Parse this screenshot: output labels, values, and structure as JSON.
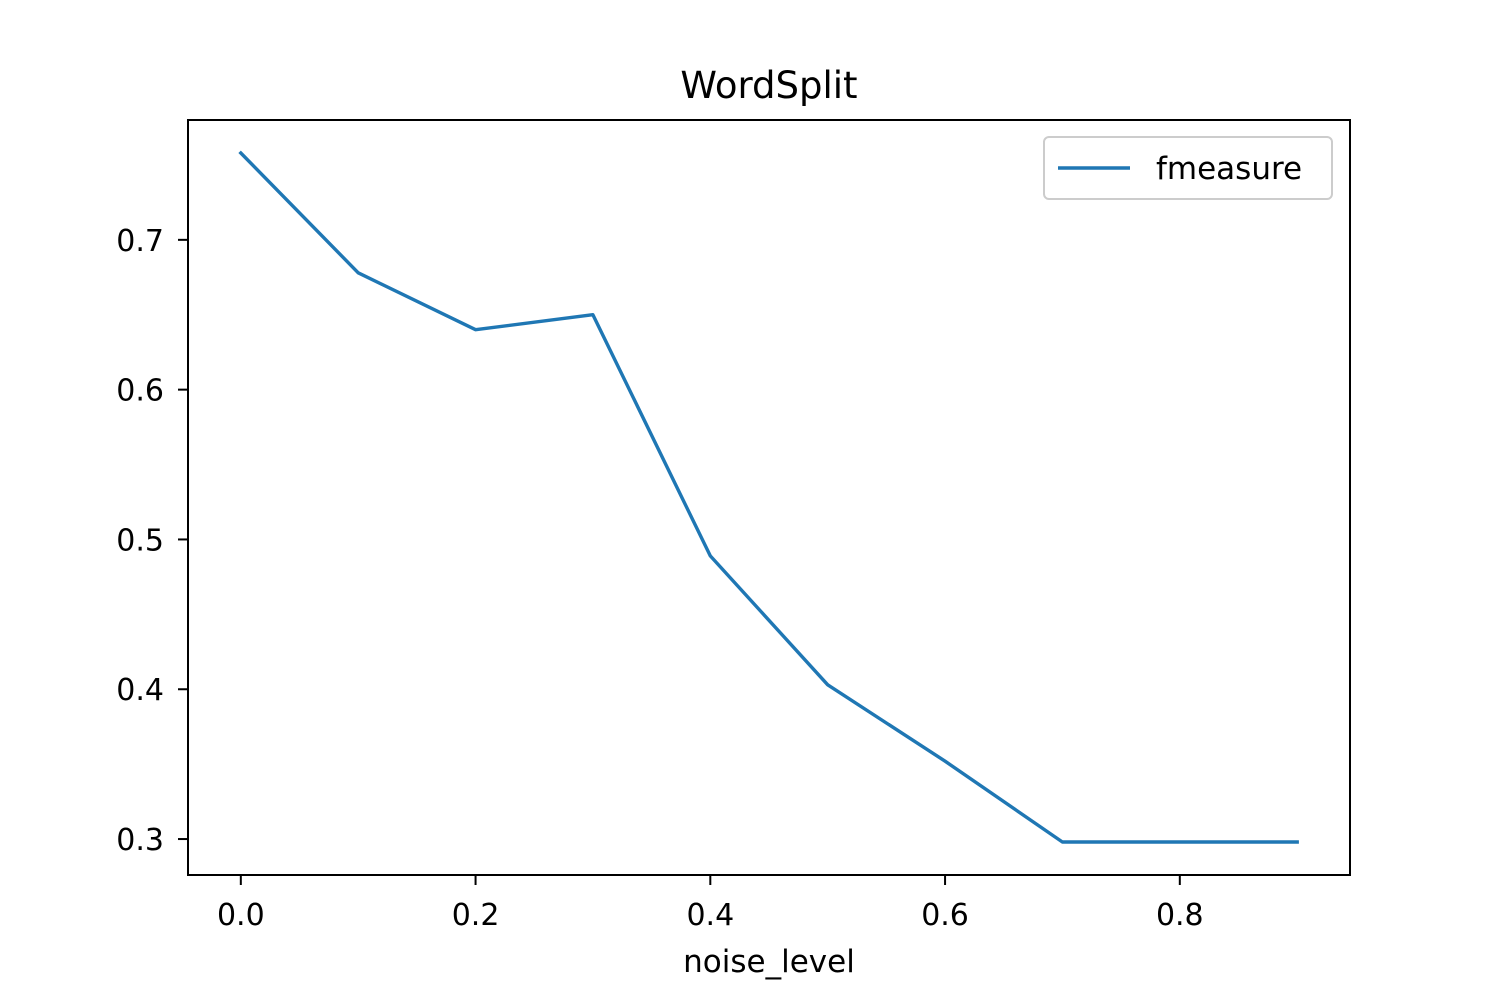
{
  "chart_data": {
    "type": "line",
    "title": "WordSplit",
    "xlabel": "noise_level",
    "ylabel": "",
    "x": [
      0.0,
      0.1,
      0.2,
      0.3,
      0.4,
      0.5,
      0.6,
      0.7,
      0.8,
      0.9
    ],
    "series": [
      {
        "name": "fmeasure",
        "values": [
          0.758,
          0.678,
          0.64,
          0.65,
          0.489,
          0.403,
          0.352,
          0.298,
          0.298,
          0.298
        ],
        "color": "#1f77b4"
      }
    ],
    "xlim": [
      -0.045,
      0.945
    ],
    "ylim": [
      0.276,
      0.78
    ],
    "xticks": [
      0.0,
      0.2,
      0.4,
      0.6,
      0.8
    ],
    "xtick_labels": [
      "0.0",
      "0.2",
      "0.4",
      "0.6",
      "0.8"
    ],
    "yticks": [
      0.3,
      0.4,
      0.5,
      0.6,
      0.7
    ],
    "ytick_labels": [
      "0.3",
      "0.4",
      "0.5",
      "0.6",
      "0.7"
    ],
    "grid": false,
    "legend_position": "top-right"
  }
}
